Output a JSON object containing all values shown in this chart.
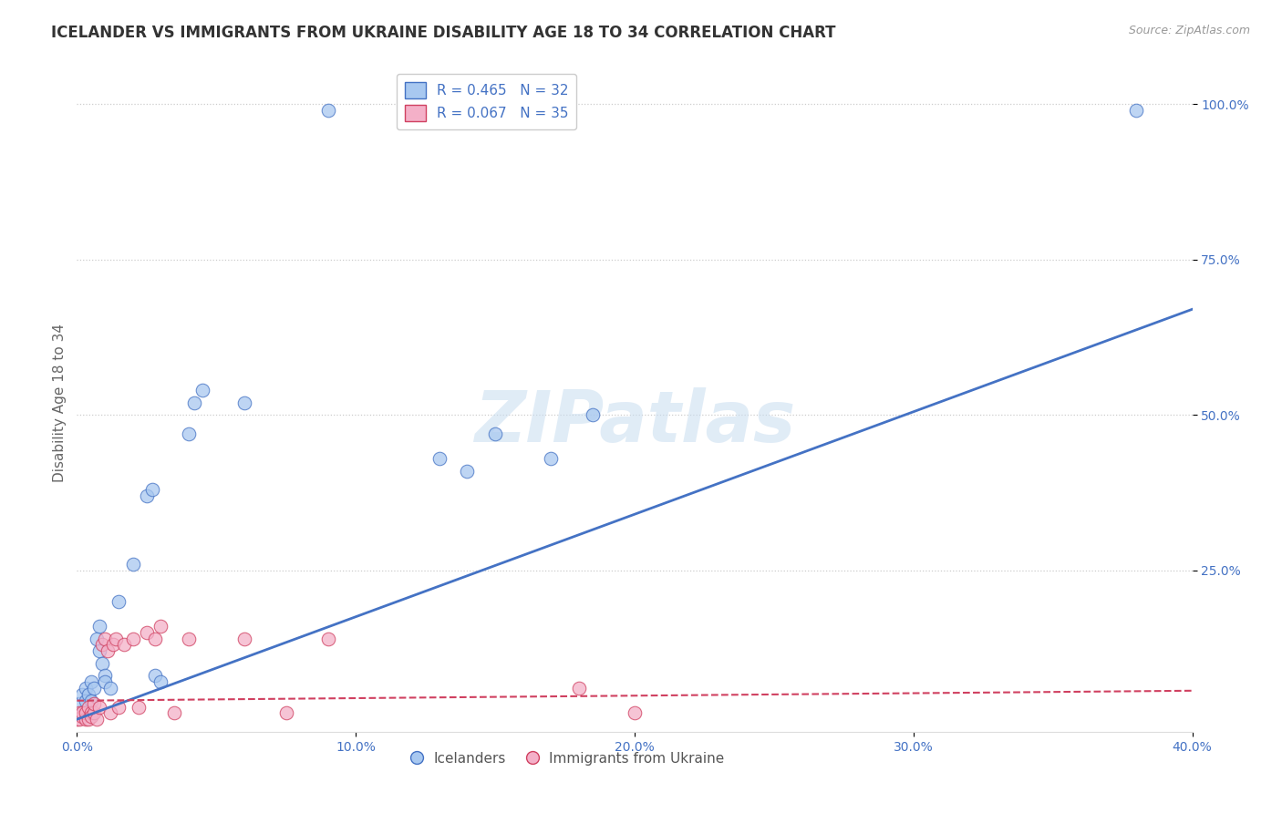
{
  "title": "ICELANDER VS IMMIGRANTS FROM UKRAINE DISABILITY AGE 18 TO 34 CORRELATION CHART",
  "source": "Source: ZipAtlas.com",
  "ylabel": "Disability Age 18 to 34",
  "xlim": [
    0.0,
    0.4
  ],
  "ylim": [
    0.0,
    1.05
  ],
  "xtick_labels": [
    "0.0%",
    "10.0%",
    "20.0%",
    "30.0%",
    "40.0%"
  ],
  "xtick_values": [
    0.0,
    0.1,
    0.2,
    0.3,
    0.4
  ],
  "ytick_labels": [
    "100.0%",
    "75.0%",
    "50.0%",
    "25.0%"
  ],
  "ytick_values": [
    1.0,
    0.75,
    0.5,
    0.25
  ],
  "legend_r_label_1": "R = 0.465   N = 32",
  "legend_r_label_2": "R = 0.067   N = 35",
  "legend_label_icelanders": "Icelanders",
  "legend_label_ukraine": "Immigrants from Ukraine",
  "icelanders_color": "#a8c8f0",
  "ukraine_color": "#f4b0c8",
  "trendline_blue_color": "#4472c4",
  "trendline_pink_color": "#d04060",
  "watermark_text": "ZIPatlas",
  "background_color": "#ffffff",
  "grid_color": "#cccccc",
  "tick_color": "#4472c4",
  "icelanders_scatter": [
    [
      0.001,
      0.035
    ],
    [
      0.002,
      0.05
    ],
    [
      0.003,
      0.06
    ],
    [
      0.003,
      0.04
    ],
    [
      0.004,
      0.05
    ],
    [
      0.005,
      0.04
    ],
    [
      0.005,
      0.07
    ],
    [
      0.006,
      0.06
    ],
    [
      0.007,
      0.14
    ],
    [
      0.008,
      0.16
    ],
    [
      0.008,
      0.12
    ],
    [
      0.009,
      0.1
    ],
    [
      0.01,
      0.08
    ],
    [
      0.01,
      0.07
    ],
    [
      0.012,
      0.06
    ],
    [
      0.015,
      0.2
    ],
    [
      0.02,
      0.26
    ],
    [
      0.025,
      0.37
    ],
    [
      0.027,
      0.38
    ],
    [
      0.028,
      0.08
    ],
    [
      0.03,
      0.07
    ],
    [
      0.04,
      0.47
    ],
    [
      0.042,
      0.52
    ],
    [
      0.045,
      0.54
    ],
    [
      0.06,
      0.52
    ],
    [
      0.09,
      0.99
    ],
    [
      0.13,
      0.43
    ],
    [
      0.14,
      0.41
    ],
    [
      0.15,
      0.47
    ],
    [
      0.17,
      0.43
    ],
    [
      0.185,
      0.5
    ],
    [
      0.38,
      0.99
    ]
  ],
  "ukraine_scatter": [
    [
      0.0,
      0.01
    ],
    [
      0.001,
      0.02
    ],
    [
      0.001,
      0.01
    ],
    [
      0.002,
      0.015
    ],
    [
      0.002,
      0.02
    ],
    [
      0.003,
      0.01
    ],
    [
      0.003,
      0.02
    ],
    [
      0.004,
      0.01
    ],
    [
      0.004,
      0.03
    ],
    [
      0.005,
      0.02
    ],
    [
      0.005,
      0.015
    ],
    [
      0.006,
      0.02
    ],
    [
      0.006,
      0.035
    ],
    [
      0.007,
      0.01
    ],
    [
      0.008,
      0.03
    ],
    [
      0.009,
      0.13
    ],
    [
      0.01,
      0.14
    ],
    [
      0.011,
      0.12
    ],
    [
      0.012,
      0.02
    ],
    [
      0.013,
      0.13
    ],
    [
      0.014,
      0.14
    ],
    [
      0.015,
      0.03
    ],
    [
      0.017,
      0.13
    ],
    [
      0.02,
      0.14
    ],
    [
      0.022,
      0.03
    ],
    [
      0.025,
      0.15
    ],
    [
      0.028,
      0.14
    ],
    [
      0.03,
      0.16
    ],
    [
      0.035,
      0.02
    ],
    [
      0.04,
      0.14
    ],
    [
      0.06,
      0.14
    ],
    [
      0.075,
      0.02
    ],
    [
      0.09,
      0.14
    ],
    [
      0.18,
      0.06
    ],
    [
      0.2,
      0.02
    ]
  ],
  "trendline_ice_slope": 1.65,
  "trendline_ice_intercept": 0.01,
  "trendline_ukr_slope": 0.04,
  "trendline_ukr_intercept": 0.04,
  "title_fontsize": 12,
  "axis_label_fontsize": 11,
  "tick_fontsize": 10,
  "legend_fontsize": 11
}
